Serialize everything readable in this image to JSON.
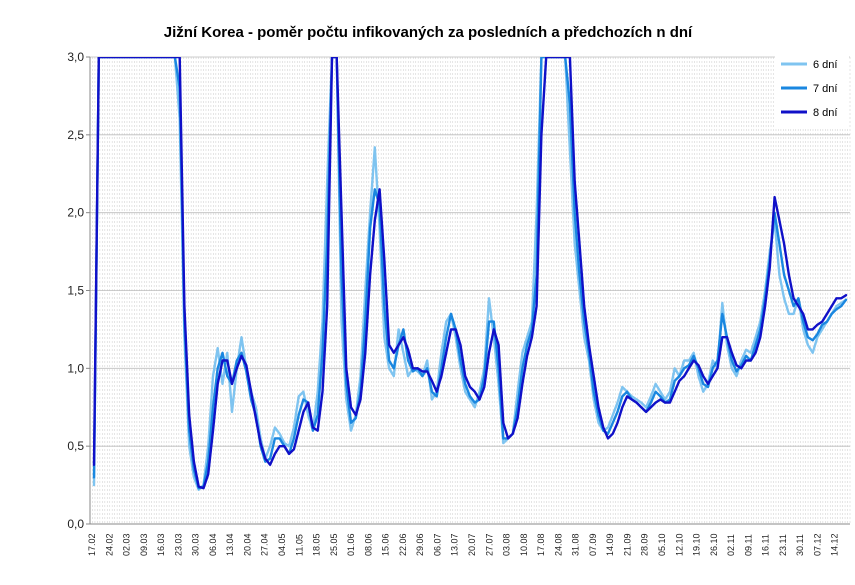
{
  "chart_data": {
    "type": "line",
    "title": "Jižní Korea - poměr počtu infikovaných za posledních a předchozích n dní",
    "xlabel": "",
    "ylabel": "",
    "ylim": [
      0,
      3
    ],
    "yticks": [
      "0,0",
      "0,5",
      "1,0",
      "1,5",
      "2,0",
      "2,5",
      "3,0"
    ],
    "xticks": [
      "17.02",
      "24.02",
      "02.03",
      "09.03",
      "16.03",
      "23.03",
      "30.03",
      "06.04",
      "13.04",
      "20.04",
      "27.04",
      "04.05",
      "11.05",
      "18.05",
      "25.05",
      "01.06",
      "08.06",
      "15.06",
      "22.06",
      "29.06",
      "06.07",
      "13.07",
      "20.07",
      "27.07",
      "03.08",
      "10.08",
      "17.08",
      "24.08",
      "31.08",
      "07.09",
      "14.09",
      "21.09",
      "28.09",
      "05.10",
      "12.10",
      "19.10",
      "26.10",
      "02.11",
      "09.11",
      "16.11",
      "23.11",
      "30.11",
      "07.12",
      "14.12"
    ],
    "grid": true,
    "legend_position": "top-right",
    "series": [
      {
        "name": "6 dní",
        "color": "#7fc4f0",
        "values": [
          0.25,
          3,
          3,
          3,
          3,
          3,
          3,
          3,
          3,
          3,
          3,
          3,
          3,
          3,
          3,
          3,
          3,
          3,
          2.6,
          1.2,
          0.5,
          0.3,
          0.22,
          0.25,
          0.5,
          0.95,
          1.13,
          0.9,
          1.1,
          0.72,
          1.0,
          1.2,
          1.0,
          0.85,
          0.75,
          0.55,
          0.42,
          0.5,
          0.62,
          0.58,
          0.52,
          0.5,
          0.62,
          0.82,
          0.85,
          0.7,
          0.6,
          0.85,
          1.3,
          2.2,
          3,
          3,
          1.3,
          0.8,
          0.6,
          0.7,
          0.95,
          1.5,
          2.0,
          2.42,
          1.9,
          1.2,
          1.0,
          0.95,
          1.25,
          1.1,
          0.95,
          1.0,
          0.98,
          0.95,
          1.05,
          0.8,
          0.85,
          1.1,
          1.3,
          1.35,
          1.2,
          1.0,
          0.85,
          0.8,
          0.75,
          0.85,
          1.0,
          1.45,
          1.2,
          0.9,
          0.52,
          0.55,
          0.58,
          0.85,
          1.1,
          1.2,
          1.3,
          2.0,
          3,
          3,
          3,
          3,
          3,
          3,
          2.4,
          1.8,
          1.5,
          1.2,
          1.05,
          0.8,
          0.65,
          0.6,
          0.62,
          0.7,
          0.78,
          0.88,
          0.85,
          0.82,
          0.8,
          0.78,
          0.75,
          0.82,
          0.9,
          0.85,
          0.8,
          0.85,
          1.0,
          0.95,
          1.05,
          1.05,
          1.1,
          0.95,
          0.85,
          0.9,
          1.05,
          1.0,
          1.42,
          1.15,
          1.0,
          0.95,
          1.05,
          1.12,
          1.1,
          1.2,
          1.3,
          1.5,
          1.75,
          1.95,
          1.6,
          1.45,
          1.35,
          1.35,
          1.45,
          1.25,
          1.15,
          1.1,
          1.2,
          1.25,
          1.3,
          1.35,
          1.4,
          1.42,
          1.44
        ]
      },
      {
        "name": "7 dní",
        "color": "#1a87e0",
        "values": [
          0.3,
          3,
          3,
          3,
          3,
          3,
          3,
          3,
          3,
          3,
          3,
          3,
          3,
          3,
          3,
          3,
          3,
          3,
          2.8,
          1.3,
          0.6,
          0.35,
          0.23,
          0.24,
          0.4,
          0.75,
          1.0,
          1.1,
          0.95,
          0.9,
          1.05,
          1.1,
          0.98,
          0.8,
          0.7,
          0.5,
          0.4,
          0.42,
          0.55,
          0.55,
          0.5,
          0.45,
          0.55,
          0.7,
          0.8,
          0.78,
          0.6,
          0.7,
          1.1,
          1.8,
          3,
          3,
          1.6,
          0.9,
          0.65,
          0.68,
          0.85,
          1.3,
          1.9,
          2.15,
          2.05,
          1.4,
          1.05,
          1.0,
          1.15,
          1.25,
          1.05,
          0.98,
          1.0,
          0.95,
          1.0,
          0.85,
          0.82,
          1.0,
          1.2,
          1.35,
          1.25,
          1.05,
          0.9,
          0.82,
          0.78,
          0.8,
          0.95,
          1.3,
          1.3,
          1.0,
          0.55,
          0.55,
          0.58,
          0.75,
          1.0,
          1.15,
          1.25,
          1.6,
          3,
          3,
          3,
          3,
          3,
          3,
          2.7,
          2.0,
          1.6,
          1.3,
          1.1,
          0.85,
          0.7,
          0.6,
          0.58,
          0.65,
          0.72,
          0.82,
          0.85,
          0.8,
          0.78,
          0.75,
          0.72,
          0.78,
          0.85,
          0.82,
          0.78,
          0.8,
          0.92,
          0.95,
          1.0,
          1.02,
          1.08,
          1.0,
          0.9,
          0.88,
          1.0,
          1.05,
          1.35,
          1.2,
          1.05,
          0.98,
          1.02,
          1.08,
          1.05,
          1.15,
          1.25,
          1.45,
          1.7,
          2.0,
          1.8,
          1.6,
          1.5,
          1.4,
          1.45,
          1.3,
          1.2,
          1.18,
          1.22,
          1.28,
          1.3,
          1.35,
          1.38,
          1.4,
          1.44
        ]
      },
      {
        "name": "8 dní",
        "color": "#1010c8",
        "values": [
          0.38,
          3,
          3,
          3,
          3,
          3,
          3,
          3,
          3,
          3,
          3,
          3,
          3,
          3,
          3,
          3,
          3,
          3,
          3,
          1.4,
          0.7,
          0.4,
          0.24,
          0.23,
          0.32,
          0.6,
          0.9,
          1.05,
          1.05,
          0.9,
          1.0,
          1.08,
          1.02,
          0.85,
          0.68,
          0.52,
          0.42,
          0.38,
          0.45,
          0.5,
          0.5,
          0.45,
          0.48,
          0.6,
          0.72,
          0.78,
          0.62,
          0.6,
          0.85,
          1.4,
          3,
          3,
          2.0,
          1.0,
          0.75,
          0.7,
          0.8,
          1.1,
          1.6,
          1.95,
          2.15,
          1.7,
          1.15,
          1.1,
          1.15,
          1.2,
          1.12,
          1.0,
          1.0,
          0.98,
          0.98,
          0.92,
          0.85,
          0.95,
          1.1,
          1.25,
          1.25,
          1.15,
          0.95,
          0.88,
          0.85,
          0.8,
          0.88,
          1.1,
          1.25,
          1.15,
          0.65,
          0.55,
          0.58,
          0.68,
          0.9,
          1.08,
          1.2,
          1.4,
          2.5,
          3,
          3,
          3,
          3,
          3,
          3,
          2.2,
          1.8,
          1.4,
          1.15,
          0.95,
          0.75,
          0.62,
          0.55,
          0.58,
          0.65,
          0.75,
          0.82,
          0.8,
          0.78,
          0.75,
          0.72,
          0.75,
          0.78,
          0.8,
          0.78,
          0.78,
          0.85,
          0.92,
          0.95,
          1.0,
          1.05,
          1.02,
          0.95,
          0.9,
          0.95,
          1.0,
          1.2,
          1.2,
          1.1,
          1.02,
          1.0,
          1.05,
          1.05,
          1.1,
          1.2,
          1.4,
          1.65,
          2.1,
          1.95,
          1.8,
          1.6,
          1.45,
          1.4,
          1.35,
          1.25,
          1.25,
          1.28,
          1.3,
          1.35,
          1.4,
          1.45,
          1.45,
          1.47
        ]
      }
    ]
  }
}
